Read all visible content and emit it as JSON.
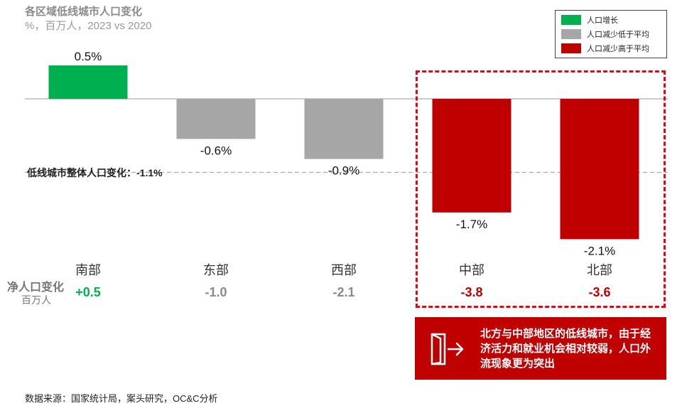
{
  "title": "各区域低线城市人口变化",
  "subtitle": "%，百万人，2023 vs 2020",
  "legend": [
    {
      "label": "人口增长",
      "color": "#00b050"
    },
    {
      "label": "人口减少低于平均",
      "color": "#a6a6a6"
    },
    {
      "label": "人口减少高于平均",
      "color": "#c00000"
    }
  ],
  "average_label": "低线城市整体人口变化：-1.1%",
  "net_row": {
    "label": "净人口变化",
    "sublabel": "百万人"
  },
  "callout": {
    "text": "北方与中部地区的低线城市，由于经济活力和就业机会相对较弱，人口外流现象更为突出",
    "icon": "exit-door-icon"
  },
  "source": "数据来源：国家统计局，案头研究，OC&C分析",
  "chart_data": {
    "type": "bar",
    "title": "各区域低线城市人口变化",
    "subtitle": "%，百万人，2023 vs 2020",
    "categories": [
      "南部",
      "东部",
      "西部",
      "中部",
      "北部"
    ],
    "values": [
      0.5,
      -0.6,
      -0.9,
      -1.7,
      -2.1
    ],
    "value_labels": [
      "0.5%",
      "-0.6%",
      "-0.9%",
      "-1.7%",
      "-2.1%"
    ],
    "colors": [
      "#00b050",
      "#a6a6a6",
      "#a6a6a6",
      "#c00000",
      "#c00000"
    ],
    "average": -1.1,
    "net_change": [
      "+0.5",
      "-1.0",
      "-2.1",
      "-3.8",
      "-3.6"
    ],
    "net_change_colors": [
      "#00b050",
      "#8a8a8a",
      "#8a8a8a",
      "#c00000",
      "#c00000"
    ],
    "ylim": [
      -2.1,
      0.5
    ],
    "legend_position": "top-right",
    "grid": false
  }
}
